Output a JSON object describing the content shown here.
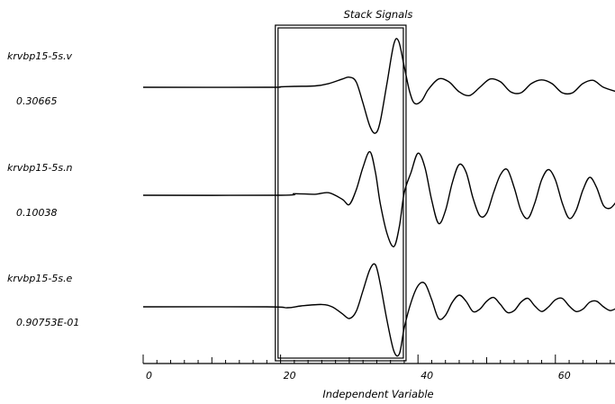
{
  "chart_data": {
    "type": "line",
    "title": "Stack Signals",
    "xlabel": "Independent Variable",
    "xlim": [
      0,
      69
    ],
    "x_ticks": [
      0,
      20,
      40,
      60
    ],
    "window": [
      19.5,
      38
    ],
    "series": [
      {
        "name": "krvbp15-5s.v",
        "scale_label": "0.30665",
        "points": [
          [
            0,
            0
          ],
          [
            18,
            0
          ],
          [
            20,
            0.01
          ],
          [
            22,
            0.02
          ],
          [
            25,
            0.03
          ],
          [
            27,
            0.08
          ],
          [
            29,
            0.18
          ],
          [
            30,
            0.22
          ],
          [
            31,
            0.12
          ],
          [
            32,
            -0.35
          ],
          [
            33,
            -0.85
          ],
          [
            33.8,
            -1.0
          ],
          [
            34.5,
            -0.75
          ],
          [
            35.5,
            0.1
          ],
          [
            36.5,
            0.95
          ],
          [
            37.2,
            1.0
          ],
          [
            38,
            0.45
          ],
          [
            38.8,
            -0.1
          ],
          [
            39.5,
            -0.35
          ],
          [
            40.5,
            -0.3
          ],
          [
            41.5,
            -0.05
          ],
          [
            43,
            0.18
          ],
          [
            44.5,
            0.12
          ],
          [
            46,
            -0.1
          ],
          [
            47.5,
            -0.18
          ],
          [
            49,
            0.0
          ],
          [
            50.5,
            0.18
          ],
          [
            52,
            0.12
          ],
          [
            53.5,
            -0.1
          ],
          [
            55,
            -0.12
          ],
          [
            56.5,
            0.08
          ],
          [
            58,
            0.16
          ],
          [
            59.5,
            0.08
          ],
          [
            61,
            -0.12
          ],
          [
            62.5,
            -0.12
          ],
          [
            64,
            0.08
          ],
          [
            65.5,
            0.15
          ],
          [
            67,
            0.0
          ],
          [
            69,
            -0.1
          ]
        ]
      },
      {
        "name": "krvbp15-5s.n",
        "scale_label": "0.10038",
        "points": [
          [
            0,
            0
          ],
          [
            20,
            0
          ],
          [
            22,
            0.03
          ],
          [
            25,
            0.02
          ],
          [
            27,
            0.05
          ],
          [
            29,
            -0.08
          ],
          [
            30,
            -0.18
          ],
          [
            31,
            0.1
          ],
          [
            32,
            0.55
          ],
          [
            33,
            0.85
          ],
          [
            33.8,
            0.45
          ],
          [
            34.5,
            -0.15
          ],
          [
            35.5,
            -0.75
          ],
          [
            36.5,
            -1.0
          ],
          [
            37.3,
            -0.6
          ],
          [
            38,
            0.05
          ],
          [
            39,
            0.45
          ],
          [
            40,
            0.82
          ],
          [
            41,
            0.55
          ],
          [
            42,
            -0.1
          ],
          [
            43,
            -0.55
          ],
          [
            44,
            -0.3
          ],
          [
            45,
            0.25
          ],
          [
            46,
            0.6
          ],
          [
            47,
            0.45
          ],
          [
            48,
            -0.05
          ],
          [
            49,
            -0.4
          ],
          [
            50,
            -0.35
          ],
          [
            51,
            0.05
          ],
          [
            52,
            0.4
          ],
          [
            53,
            0.5
          ],
          [
            54,
            0.15
          ],
          [
            55,
            -0.3
          ],
          [
            56,
            -0.45
          ],
          [
            57,
            -0.15
          ],
          [
            58,
            0.3
          ],
          [
            59,
            0.5
          ],
          [
            60,
            0.3
          ],
          [
            61,
            -0.15
          ],
          [
            62,
            -0.45
          ],
          [
            63,
            -0.3
          ],
          [
            64,
            0.1
          ],
          [
            65,
            0.35
          ],
          [
            66,
            0.15
          ],
          [
            67,
            -0.2
          ],
          [
            68,
            -0.25
          ],
          [
            69,
            -0.1
          ]
        ]
      },
      {
        "name": "krvbp15-5s.e",
        "scale_label": "0.90753E-01",
        "points": [
          [
            0,
            0
          ],
          [
            18,
            0
          ],
          [
            21,
            -0.02
          ],
          [
            23,
            0.02
          ],
          [
            26,
            0.05
          ],
          [
            27.5,
            0.0
          ],
          [
            29,
            -0.15
          ],
          [
            30,
            -0.25
          ],
          [
            31,
            -0.1
          ],
          [
            32,
            0.35
          ],
          [
            33,
            0.8
          ],
          [
            33.8,
            0.9
          ],
          [
            34.5,
            0.5
          ],
          [
            35.5,
            -0.3
          ],
          [
            36.5,
            -0.95
          ],
          [
            37.3,
            -1.0
          ],
          [
            38,
            -0.45
          ],
          [
            39,
            0.1
          ],
          [
            40,
            0.45
          ],
          [
            41,
            0.5
          ],
          [
            42,
            0.15
          ],
          [
            43,
            -0.25
          ],
          [
            44,
            -0.18
          ],
          [
            45,
            0.1
          ],
          [
            46,
            0.25
          ],
          [
            47,
            0.12
          ],
          [
            48,
            -0.1
          ],
          [
            49,
            -0.05
          ],
          [
            50,
            0.12
          ],
          [
            51,
            0.2
          ],
          [
            52,
            0.05
          ],
          [
            53,
            -0.12
          ],
          [
            54,
            -0.08
          ],
          [
            55,
            0.1
          ],
          [
            56,
            0.18
          ],
          [
            57,
            0.02
          ],
          [
            58,
            -0.1
          ],
          [
            59,
            0.0
          ],
          [
            60,
            0.15
          ],
          [
            61,
            0.18
          ],
          [
            62,
            0.02
          ],
          [
            63,
            -0.1
          ],
          [
            64,
            -0.05
          ],
          [
            65,
            0.1
          ],
          [
            66,
            0.12
          ],
          [
            67,
            0.0
          ],
          [
            68,
            -0.08
          ],
          [
            69,
            -0.02
          ]
        ]
      }
    ]
  }
}
